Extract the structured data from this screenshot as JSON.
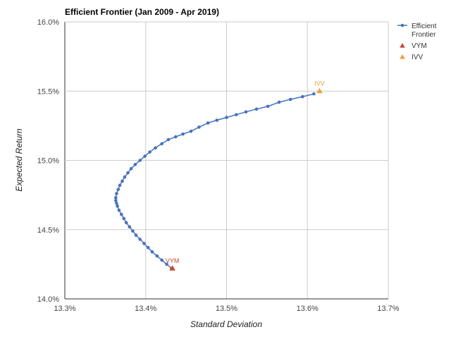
{
  "chart_data": {
    "type": "scatter",
    "title": "Efficient Frontier (Jan 2009 - Apr 2019)",
    "xlabel": "Standard Deviation",
    "ylabel": "Expected Return",
    "xlim": [
      13.3,
      13.7
    ],
    "ylim": [
      14.0,
      16.0
    ],
    "x_ticks": [
      "13.3%",
      "13.4%",
      "13.5%",
      "13.6%",
      "13.7%"
    ],
    "y_ticks": [
      "14.0%",
      "14.5%",
      "15.0%",
      "15.5%",
      "16.0%"
    ],
    "grid": true,
    "legend_position": "right",
    "series": [
      {
        "name": "Efficient\nFrontier",
        "kind": "line-with-markers",
        "color": "#4472c4",
        "x": [
          13.432,
          13.426,
          13.42,
          13.414,
          13.408,
          13.403,
          13.398,
          13.393,
          13.388,
          13.384,
          13.38,
          13.376,
          13.373,
          13.37,
          13.367,
          13.365,
          13.364,
          13.363,
          13.363,
          13.364,
          13.366,
          13.368,
          13.371,
          13.374,
          13.378,
          13.382,
          13.387,
          13.393,
          13.399,
          13.405,
          13.412,
          13.42,
          13.428,
          13.437,
          13.446,
          13.456,
          13.466,
          13.477,
          13.488,
          13.5,
          13.512,
          13.524,
          13.537,
          13.551,
          13.565,
          13.579,
          13.594,
          13.608
        ],
        "y": [
          14.22,
          14.25,
          14.28,
          14.31,
          14.34,
          14.37,
          14.4,
          14.43,
          14.46,
          14.49,
          14.52,
          14.55,
          14.58,
          14.61,
          14.64,
          14.67,
          14.69,
          14.71,
          14.73,
          14.76,
          14.79,
          14.82,
          14.85,
          14.88,
          14.91,
          14.94,
          14.97,
          15.0,
          15.03,
          15.06,
          15.09,
          15.12,
          15.15,
          15.17,
          15.19,
          15.21,
          15.24,
          15.27,
          15.29,
          15.31,
          15.33,
          15.35,
          15.37,
          15.39,
          15.42,
          15.44,
          15.46,
          15.48
        ]
      },
      {
        "name": "VYM",
        "kind": "marker",
        "marker": "triangle",
        "color": "#d2462a",
        "label": "VYM",
        "x": [
          13.433
        ],
        "y": [
          14.22
        ]
      },
      {
        "name": "IVV",
        "kind": "marker",
        "marker": "triangle",
        "color": "#f0a030",
        "label": "IVV",
        "x": [
          13.615
        ],
        "y": [
          15.5
        ]
      }
    ]
  }
}
